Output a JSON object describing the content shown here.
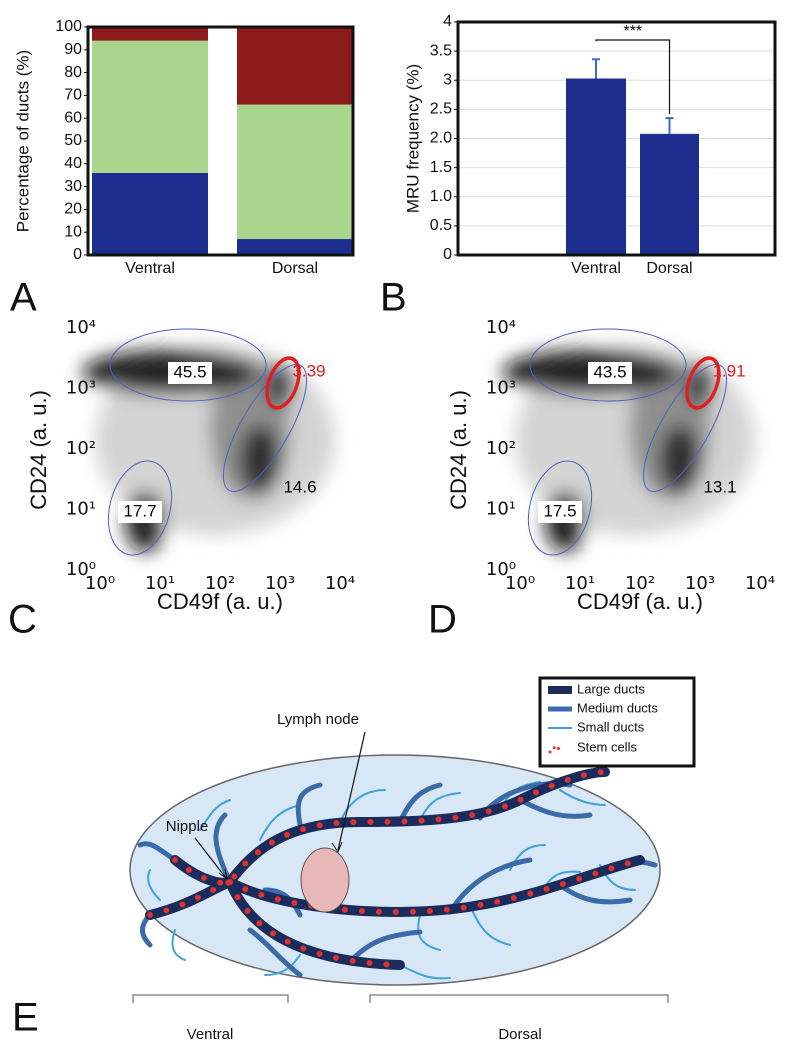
{
  "chart_data": [
    {
      "type": "bar",
      "stacked": true,
      "panel": "A",
      "ylabel": "Percentage of ducts (%)",
      "categories": [
        "Ventral",
        "Dorsal"
      ],
      "series": [
        {
          "color": "#1c2f8f",
          "values": [
            36,
            7
          ]
        },
        {
          "color": "#a8d68c",
          "values": [
            58,
            59
          ]
        },
        {
          "color": "#8c1a1a",
          "values": [
            6,
            34
          ]
        }
      ],
      "ylim": [
        0,
        100
      ],
      "yticks": [
        0,
        10,
        20,
        30,
        40,
        50,
        60,
        70,
        80,
        90,
        100
      ],
      "grid": false
    },
    {
      "type": "bar",
      "panel": "B",
      "ylabel": "MRU frequency (%)",
      "categories": [
        "Ventral",
        "Dorsal"
      ],
      "values": [
        3.03,
        2.08
      ],
      "errors": [
        0.33,
        0.27
      ],
      "color": "#1c2f8f",
      "ylim": [
        0,
        4
      ],
      "yticks": [
        0,
        0.5,
        {
          "value": 1,
          "label": "1.0"
        },
        1.5,
        {
          "value": 2,
          "label": "2.0"
        },
        2.5,
        3,
        3.5,
        4
      ],
      "grid": true,
      "annotation": "***"
    },
    {
      "type": "density",
      "panel": "C",
      "xlabel": "CD49f (a. u.)",
      "ylabel": "CD24 (a. u.)",
      "log_scale": true,
      "xlim": [
        1,
        10000
      ],
      "ylim": [
        1,
        10000
      ],
      "xticks": [
        {
          "value": 1,
          "label": "10⁰"
        },
        {
          "value": 10,
          "label": "10¹"
        },
        {
          "value": 100,
          "label": "10²"
        },
        {
          "value": 1000,
          "label": "10³"
        },
        {
          "value": 10000,
          "label": "10⁴"
        }
      ],
      "yticks": [
        {
          "value": 1,
          "label": "10⁰"
        },
        {
          "value": 10,
          "label": "10¹"
        },
        {
          "value": 100,
          "label": "10²"
        },
        {
          "value": 1000,
          "label": "10³"
        },
        {
          "value": 10000,
          "label": "10⁴"
        }
      ],
      "gate_values": [
        45.5,
        17.7,
        14.6,
        3.39
      ],
      "gate_colors": [
        "#5060c0",
        "#5060c0",
        "#5060c0",
        "#e02020"
      ],
      "gate_label_colors": [
        "#000000",
        "#000000",
        "#000000",
        "#e02020"
      ]
    },
    {
      "type": "density",
      "panel": "D",
      "xlabel": "CD49f (a. u.)",
      "ylabel": "CD24 (a. u.)",
      "log_scale": true,
      "xlim": [
        1,
        10000
      ],
      "ylim": [
        1,
        10000
      ],
      "xticks": [
        {
          "value": 1,
          "label": "10⁰"
        },
        {
          "value": 10,
          "label": "10¹"
        },
        {
          "value": 100,
          "label": "10²"
        },
        {
          "value": 1000,
          "label": "10³"
        },
        {
          "value": 10000,
          "label": "10⁴"
        }
      ],
      "yticks": [
        {
          "value": 1,
          "label": "10⁰"
        },
        {
          "value": 10,
          "label": "10¹"
        },
        {
          "value": 100,
          "label": "10²"
        },
        {
          "value": 1000,
          "label": "10³"
        },
        {
          "value": 10000,
          "label": "10⁴"
        }
      ],
      "gate_values": [
        43.5,
        17.5,
        13.1,
        1.91
      ],
      "gate_colors": [
        "#5060c0",
        "#5060c0",
        "#5060c0",
        "#e02020"
      ],
      "gate_label_colors": [
        "#000000",
        "#000000",
        "#000000",
        "#e02020"
      ]
    }
  ],
  "diagram": {
    "panel": "E",
    "legend": [
      "Large ducts",
      "Medium ducts",
      "Small ducts",
      "Stem cells"
    ],
    "lymph_node": "Lymph node",
    "nipple": "Nipple",
    "ventral": "Ventral",
    "dorsal": "Dorsal"
  }
}
